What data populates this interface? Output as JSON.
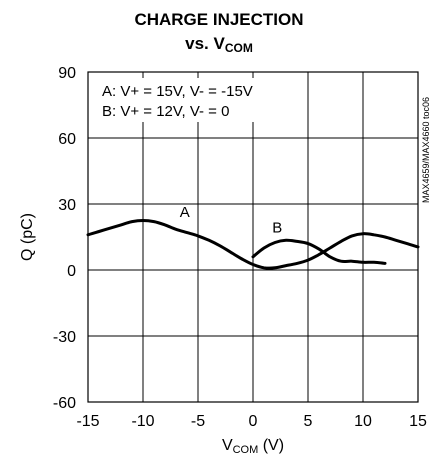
{
  "chart_data": {
    "type": "line",
    "title_line1": "CHARGE INJECTION",
    "title_line2_prefix": "vs. V",
    "title_line2_sub": "COM",
    "xlabel_main": "V",
    "xlabel_sub": "COM",
    "xlabel_unit": " (V)",
    "ylabel": "Q (pC)",
    "xlim": [
      -15,
      15
    ],
    "ylim": [
      -60,
      90
    ],
    "x_ticks": [
      "-15",
      "-10",
      "-5",
      "0",
      "5",
      "10",
      "15"
    ],
    "y_ticks": [
      "-60",
      "-30",
      "0",
      "30",
      "60",
      "90"
    ],
    "grid": true,
    "legend": [
      "A: V+ = 15V, V- = -15V",
      "B: V+ = 12V, V- = 0"
    ],
    "side_label": "MAX4659/MAX4660 toc06",
    "series": [
      {
        "name": "A",
        "x": [
          -15,
          -14,
          -13,
          -12,
          -11,
          -10,
          -9,
          -8,
          -7,
          -6,
          -5,
          -4,
          -3,
          -2,
          -1,
          0,
          1,
          2,
          3,
          4,
          5,
          6,
          7,
          8,
          9,
          10,
          11,
          12,
          13,
          14,
          15
        ],
        "y": [
          16,
          17.5,
          19,
          20.5,
          22,
          22.5,
          22,
          20.5,
          18.5,
          17,
          15.5,
          13.5,
          11,
          8,
          5,
          2.5,
          1,
          1,
          2,
          3,
          4.5,
          7,
          10,
          13,
          15.5,
          16.5,
          16,
          15,
          13.5,
          12,
          10.5
        ]
      },
      {
        "name": "B",
        "x": [
          0,
          1,
          2,
          3,
          4,
          5,
          6,
          7,
          8,
          9,
          10,
          11,
          12
        ],
        "y": [
          6,
          10,
          12.5,
          13.5,
          13,
          12,
          9.5,
          6,
          4,
          4,
          3.5,
          3.5,
          3
        ]
      }
    ],
    "annotations": [
      {
        "text": "A",
        "x": -6.2,
        "y": 24
      },
      {
        "text": "B",
        "x": 2.2,
        "y": 17
      }
    ]
  }
}
